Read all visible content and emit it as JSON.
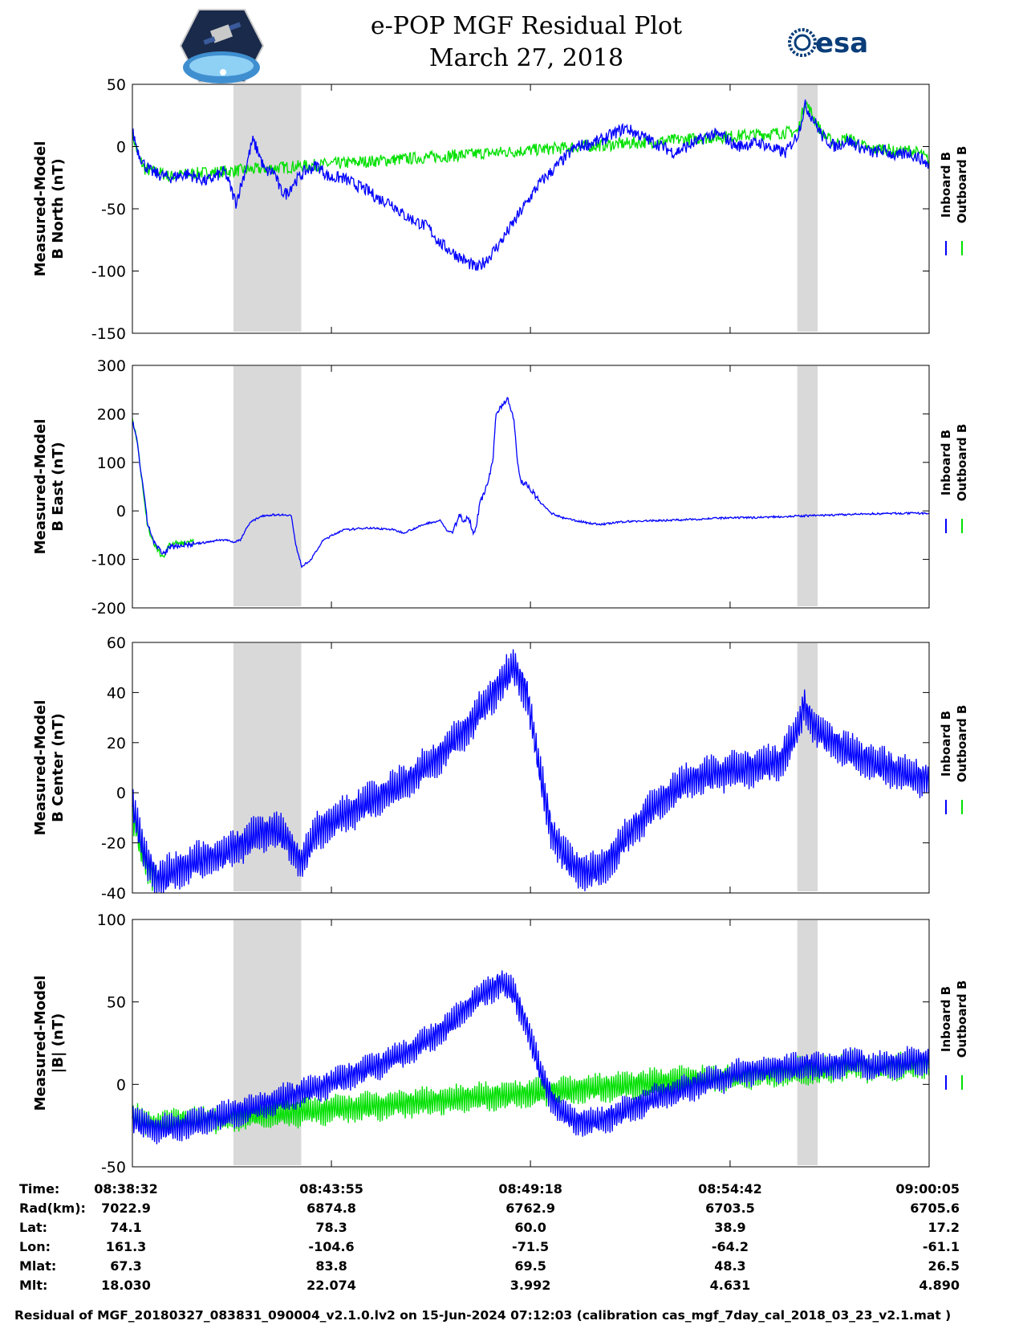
{
  "title": "e-POP MGF Residual Plot",
  "subtitle": "March 27, 2018",
  "logo_left": "e-POP / CASSIOPE mission patch",
  "logo_right": {
    "text": "esa",
    "color": "#0a3d79"
  },
  "colors": {
    "inboard": "#0000ff",
    "outboard": "#00e000",
    "shade": "#d9d9d9"
  },
  "legend": {
    "inboard": "Inboard B",
    "outboard": "Outboard B"
  },
  "chart_data": [
    {
      "type": "line",
      "ylabel": [
        "Measured-Model",
        "B North (nT)"
      ],
      "ylim": [
        -150,
        50
      ],
      "yticks": [
        -150,
        -100,
        -50,
        0,
        50
      ],
      "x_seconds_range": [
        0,
        1293
      ],
      "shaded_time_ranges": [
        [
          164,
          274
        ],
        [
          1079,
          1112
        ]
      ],
      "series": [
        {
          "name": "Inboard B",
          "x": [
            0,
            10,
            20,
            30,
            40,
            60,
            90,
            120,
            150,
            168,
            180,
            195,
            205,
            215,
            230,
            240,
            250,
            260,
            280,
            300,
            320,
            340,
            360,
            380,
            400,
            420,
            440,
            460,
            480,
            500,
            520,
            540,
            560,
            580,
            600,
            620,
            640,
            660,
            680,
            700,
            720,
            740,
            760,
            780,
            800,
            820,
            840,
            860,
            880,
            900,
            920,
            940,
            960,
            980,
            1000,
            1020,
            1040,
            1060,
            1080,
            1092,
            1105,
            1120,
            1140,
            1160,
            1180,
            1200,
            1220,
            1240,
            1260,
            1280,
            1293
          ],
          "y": [
            12,
            -5,
            -15,
            -20,
            -22,
            -25,
            -22,
            -28,
            -20,
            -45,
            -25,
            5,
            -5,
            -20,
            -20,
            -35,
            -38,
            -30,
            -20,
            -15,
            -25,
            -25,
            -30,
            -35,
            -42,
            -45,
            -55,
            -60,
            -65,
            -78,
            -85,
            -92,
            -98,
            -88,
            -75,
            -60,
            -45,
            -30,
            -20,
            -10,
            0,
            2,
            5,
            10,
            15,
            10,
            5,
            0,
            -5,
            0,
            5,
            10,
            8,
            0,
            2,
            3,
            -2,
            -5,
            10,
            33,
            22,
            8,
            0,
            5,
            0,
            -5,
            -3,
            -8,
            -5,
            -10,
            -15
          ]
        },
        {
          "name": "Outboard B",
          "x": [
            0,
            10,
            20,
            30,
            40,
            60,
            90,
            1080,
            1092,
            1105,
            1120,
            1140,
            1160,
            1180,
            1200,
            1220,
            1240,
            1260,
            1280,
            1293
          ],
          "y": [
            10,
            -8,
            -18,
            -20,
            -20,
            -24,
            -22,
            12,
            36,
            24,
            10,
            2,
            7,
            2,
            -3,
            -1,
            -5,
            -3,
            -6,
            -12
          ]
        }
      ]
    },
    {
      "type": "line",
      "ylabel": [
        "Measured-Model",
        "B East (nT)"
      ],
      "ylim": [
        -200,
        300
      ],
      "yticks": [
        -200,
        -100,
        0,
        100,
        200,
        300
      ],
      "x_seconds_range": [
        0,
        1293
      ],
      "shaded_time_ranges": [
        [
          164,
          274
        ],
        [
          1079,
          1112
        ]
      ],
      "series": [
        {
          "name": "Inboard B",
          "x": [
            0,
            8,
            16,
            24,
            32,
            40,
            50,
            60,
            80,
            100,
            120,
            140,
            155,
            165,
            175,
            190,
            210,
            230,
            250,
            258,
            265,
            275,
            290,
            310,
            340,
            380,
            420,
            440,
            460,
            480,
            500,
            510,
            520,
            530,
            540,
            545,
            555,
            565,
            575,
            585,
            590,
            600,
            610,
            620,
            625,
            630,
            640,
            660,
            680,
            700,
            720,
            740,
            760,
            780,
            800,
            850,
            900,
            950,
            1000,
            1050,
            1100,
            1150,
            1200,
            1250,
            1293
          ],
          "y": [
            185,
            140,
            60,
            -20,
            -55,
            -75,
            -90,
            -75,
            -70,
            -68,
            -65,
            -60,
            -60,
            -65,
            -60,
            -25,
            -10,
            -8,
            -8,
            -10,
            -70,
            -115,
            -100,
            -60,
            -40,
            -35,
            -38,
            -45,
            -35,
            -25,
            -20,
            -40,
            -45,
            -10,
            -20,
            -10,
            -50,
            20,
            50,
            100,
            200,
            220,
            230,
            180,
            100,
            60,
            55,
            20,
            -5,
            -15,
            -20,
            -25,
            -28,
            -25,
            -22,
            -20,
            -18,
            -15,
            -14,
            -12,
            -10,
            -8,
            -6,
            -5,
            -5
          ]
        },
        {
          "name": "Outboard B",
          "x": [
            0,
            8,
            16,
            24,
            32,
            40,
            50,
            60,
            80,
            100
          ],
          "y": [
            190,
            145,
            55,
            -25,
            -60,
            -80,
            -95,
            -70,
            -66,
            -65
          ]
        }
      ]
    },
    {
      "type": "line",
      "ylabel": [
        "Measured-Model",
        "B Center (nT)"
      ],
      "ylim": [
        -40,
        60
      ],
      "yticks": [
        -40,
        -20,
        0,
        20,
        40,
        60
      ],
      "x_seconds_range": [
        0,
        1293
      ],
      "shaded_time_ranges": [
        [
          164,
          274
        ],
        [
          1079,
          1112
        ]
      ],
      "series": [
        {
          "name": "Inboard B",
          "x": [
            0,
            10,
            20,
            30,
            40,
            60,
            100,
            140,
            180,
            200,
            220,
            240,
            250,
            260,
            275,
            300,
            350,
            400,
            450,
            500,
            550,
            580,
            600,
            620,
            640,
            660,
            680,
            700,
            720,
            740,
            760,
            780,
            800,
            850,
            900,
            950,
            1000,
            1050,
            1079,
            1090,
            1110,
            1150,
            1200,
            1250,
            1293
          ],
          "y": [
            -5,
            -15,
            -25,
            -30,
            -35,
            -32,
            -28,
            -25,
            -20,
            -17,
            -15,
            -16,
            -18,
            -22,
            -28,
            -15,
            -8,
            -2,
            5,
            15,
            28,
            38,
            45,
            50,
            40,
            10,
            -15,
            -25,
            -30,
            -32,
            -30,
            -25,
            -18,
            -5,
            5,
            8,
            10,
            12,
            25,
            35,
            25,
            18,
            12,
            8,
            5
          ]
        },
        {
          "name": "Outboard B",
          "x": [
            0,
            10,
            20,
            30,
            40
          ],
          "y": [
            -8,
            -18,
            -27,
            -31,
            -34
          ]
        }
      ]
    },
    {
      "type": "line",
      "ylabel": [
        "Measured-Model",
        "|B| (nT)"
      ],
      "ylim": [
        -50,
        100
      ],
      "yticks": [
        -50,
        0,
        50,
        100
      ],
      "x_seconds_range": [
        0,
        1293
      ],
      "shaded_time_ranges": [
        [
          164,
          274
        ],
        [
          1079,
          1112
        ]
      ],
      "series": [
        {
          "name": "Inboard B",
          "x": [
            0,
            20,
            40,
            80,
            120,
            160,
            200,
            250,
            300,
            350,
            400,
            450,
            500,
            540,
            570,
            590,
            600,
            620,
            640,
            660,
            680,
            700,
            720,
            740,
            760,
            800,
            850,
            900,
            950,
            1000,
            1050,
            1079,
            1100,
            1120,
            1150,
            1180,
            1200,
            1230,
            1260,
            1293
          ],
          "y": [
            -22,
            -25,
            -27,
            -25,
            -22,
            -18,
            -14,
            -8,
            -2,
            5,
            12,
            20,
            32,
            45,
            55,
            60,
            62,
            55,
            35,
            10,
            -8,
            -18,
            -22,
            -23,
            -22,
            -16,
            -8,
            -2,
            3,
            8,
            10,
            10,
            12,
            10,
            13,
            14,
            10,
            12,
            14,
            15
          ]
        },
        {
          "name": "Outboard B",
          "x": [
            0,
            20,
            40,
            1079,
            1100,
            1120,
            1150,
            1180,
            1200,
            1230,
            1260,
            1293
          ],
          "y": [
            -20,
            -23,
            -24,
            8,
            9,
            8,
            11,
            12,
            9,
            11,
            12,
            13
          ]
        }
      ]
    }
  ],
  "x_axis": {
    "tick_positions_seconds": [
      0,
      323,
      646,
      970,
      1293
    ],
    "table": [
      {
        "label": "Time:",
        "values": [
          "08:38:32",
          "08:43:55",
          "08:49:18",
          "08:54:42",
          "09:00:05"
        ]
      },
      {
        "label": "Rad(km):",
        "values": [
          "7022.9",
          "6874.8",
          "6762.9",
          "6703.5",
          "6705.6"
        ]
      },
      {
        "label": "Lat:",
        "values": [
          "74.1",
          "78.3",
          "60.0",
          "38.9",
          "17.2"
        ]
      },
      {
        "label": "Lon:",
        "values": [
          "161.3",
          "-104.6",
          "-71.5",
          "-64.2",
          "-61.1"
        ]
      },
      {
        "label": "Mlat:",
        "values": [
          "67.3",
          "83.8",
          "69.5",
          "48.3",
          "26.5"
        ]
      },
      {
        "label": "Mlt:",
        "values": [
          "18.030",
          "22.074",
          "3.992",
          "4.631",
          "4.890"
        ]
      }
    ]
  },
  "footer": "Residual of MGF_20180327_083831_090004_v2.1.0.lv2 on 15-Jun-2024 07:12:03 (calibration cas_mgf_7day_cal_2018_03_23_v2.1.mat )"
}
